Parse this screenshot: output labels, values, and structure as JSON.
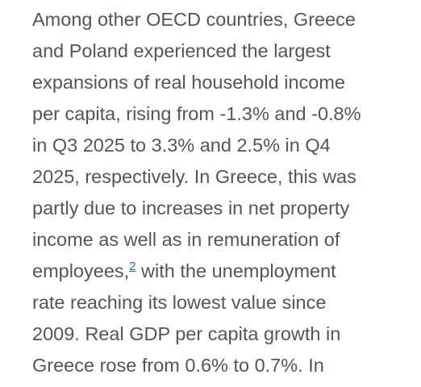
{
  "paragraph": {
    "lines_before": [
      "Among other OECD countries, Greece",
      "and Poland experienced the largest",
      "expansions of real household income",
      "per capita, rising from -1.3% and -0.8%",
      "in Q3 2025 to 3.3% and 2.5% in Q4",
      "2025, respectively. In Greece, this was",
      "partly due to increases in net property",
      "income as well as in remuneration of"
    ],
    "footnote_line": {
      "before": "employees,",
      "marker": "2",
      "after": " with the unemployment"
    },
    "lines_after": [
      "rate reaching its lowest value since",
      "2009. Real GDP per capita growth in",
      "Greece rose from 0.6% to 0.7%. In"
    ]
  }
}
